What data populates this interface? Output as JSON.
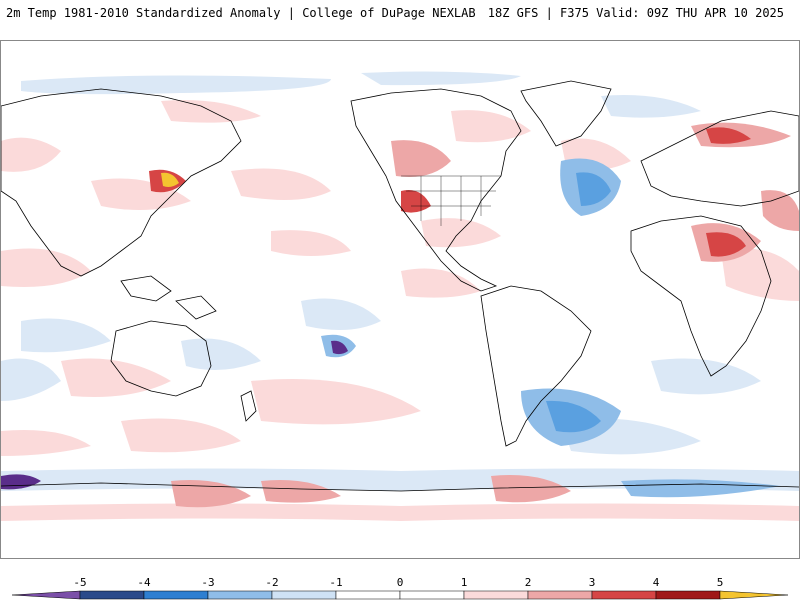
{
  "header": {
    "title_left": "2m Temp 1981-2010 Standardized Anomaly | College of DuPage NEXLAB",
    "title_right": "18Z GFS | F375 Valid: 09Z THU APR 10 2025"
  },
  "colorbar": {
    "ticks": [
      "-5",
      "-4",
      "-3",
      "-2",
      "-1",
      "0",
      "1",
      "2",
      "3",
      "4",
      "5"
    ],
    "colors": [
      "#7b4fa8",
      "#2b4a8a",
      "#2e7fd1",
      "#8fbde8",
      "#cfe2f5",
      "#ffffff",
      "#fbdada",
      "#eda7a7",
      "#d64545",
      "#a01919",
      "#f4c430"
    ]
  },
  "palette": {
    "land_line": "#000000",
    "anom_pos_light": "#fbdada",
    "anom_pos_mid": "#eda7a7",
    "anom_pos_strong": "#d64545",
    "anom_pos_extreme": "#8b0000",
    "anom_neg_light": "#dbe8f6",
    "anom_neg_mid": "#8fbde8",
    "anom_neg_strong": "#2e7fd1",
    "anom_neg_extreme": "#5a2d8a"
  },
  "map": {
    "icons": [
      "world-map",
      "north-america-outline",
      "south-america-outline",
      "europe-africa-outline",
      "asia-outline",
      "australia-outline",
      "antarctica-outline",
      "greenland-outline"
    ]
  }
}
